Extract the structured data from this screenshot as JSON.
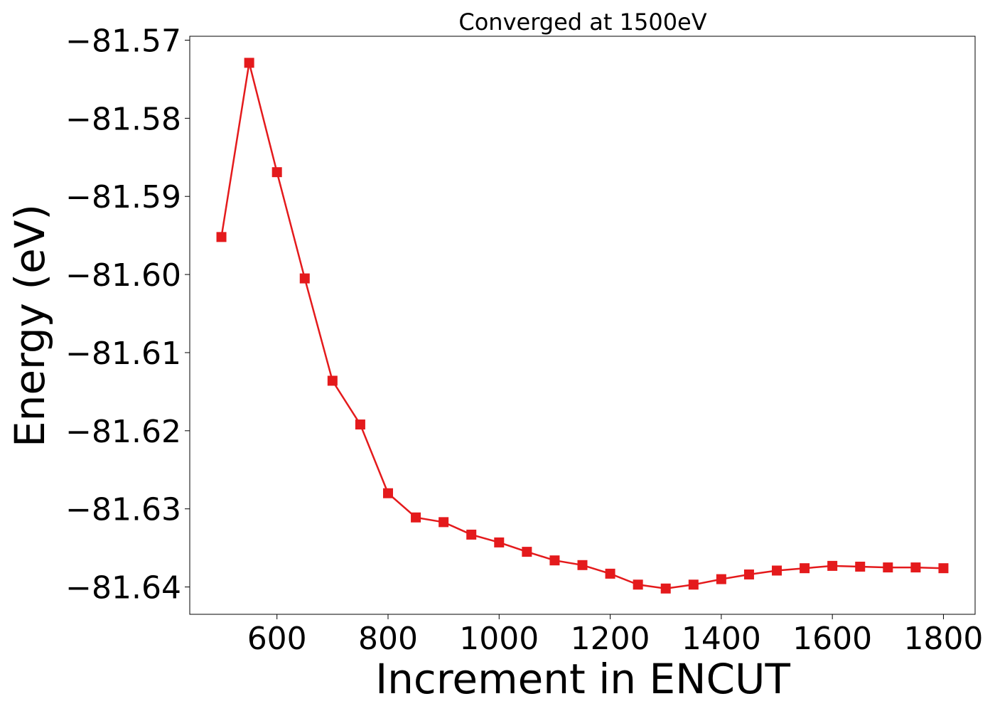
{
  "chart_data": {
    "type": "line",
    "title": "Converged at 1500eV",
    "xlabel": "Increment in ENCUT",
    "ylabel": "Energy (eV)",
    "xlim": [
      443,
      1857
    ],
    "ylim": [
      -81.6435,
      -81.5695
    ],
    "xticks": [
      600,
      800,
      1000,
      1200,
      1400,
      1600,
      1800
    ],
    "xtick_labels": [
      "600",
      "800",
      "1000",
      "1200",
      "1400",
      "1600",
      "1800"
    ],
    "yticks": [
      -81.57,
      -81.58,
      -81.59,
      -81.6,
      -81.61,
      -81.62,
      -81.63,
      -81.64
    ],
    "ytick_labels": [
      "−81.57",
      "−81.58",
      "−81.59",
      "−81.60",
      "−81.61",
      "−81.62",
      "−81.63",
      "−81.64"
    ],
    "grid": false,
    "series": [
      {
        "color": "#e41a1c",
        "marker": "square",
        "x": [
          500,
          550,
          600,
          650,
          700,
          750,
          800,
          850,
          900,
          950,
          1000,
          1050,
          1100,
          1150,
          1200,
          1250,
          1300,
          1350,
          1400,
          1450,
          1500,
          1550,
          1600,
          1650,
          1700,
          1750,
          1800
        ],
        "y": [
          -81.5952,
          -81.5729,
          -81.5869,
          -81.6005,
          -81.6136,
          -81.6192,
          -81.628,
          -81.6311,
          -81.6317,
          -81.6333,
          -81.6343,
          -81.6355,
          -81.6366,
          -81.6372,
          -81.6383,
          -81.6397,
          -81.6402,
          -81.6397,
          -81.639,
          -81.6384,
          -81.6379,
          -81.6376,
          -81.6373,
          -81.6374,
          -81.6375,
          -81.6375,
          -81.6376
        ]
      }
    ]
  }
}
